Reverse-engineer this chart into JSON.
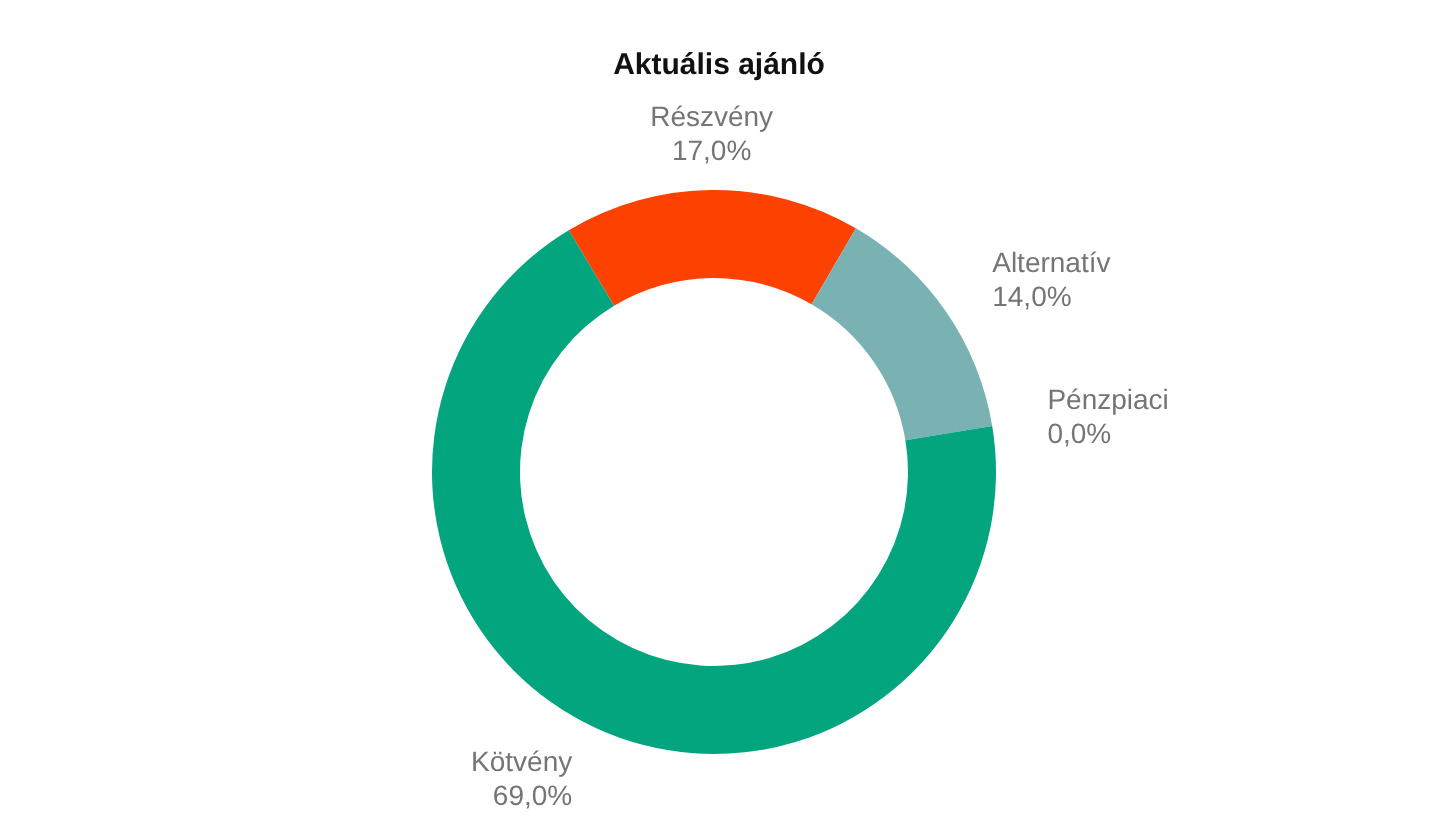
{
  "chart_data": {
    "type": "donut",
    "title": "Aktuális ajánló",
    "categories": [
      "Részvény",
      "Alternatív",
      "Pénzpiaci",
      "Kötvény"
    ],
    "values": [
      17,
      14,
      0,
      69
    ],
    "value_labels": [
      "17,0%",
      "14,0%",
      "0,0%",
      "69,0%"
    ],
    "colors": [
      "#fc4100",
      "#7ab2b4",
      "#9e9e9e",
      "#02a57d"
    ],
    "legend": false
  }
}
